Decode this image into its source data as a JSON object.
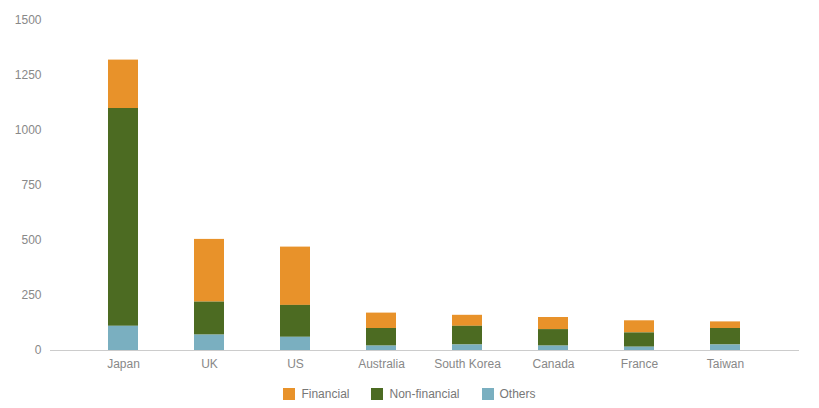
{
  "chart_data": {
    "type": "bar",
    "stacked": true,
    "categories": [
      "Japan",
      "UK",
      "US",
      "Australia",
      "South Korea",
      "Canada",
      "France",
      "Taiwan"
    ],
    "series": [
      {
        "name": "Financial",
        "color": "#E8922A",
        "values": [
          220,
          285,
          265,
          70,
          50,
          55,
          55,
          30
        ]
      },
      {
        "name": "Non-financial",
        "color": "#4C6B22",
        "values": [
          990,
          150,
          145,
          80,
          85,
          75,
          65,
          75
        ]
      },
      {
        "name": "Others",
        "color": "#7AAFC0",
        "values": [
          110,
          70,
          60,
          20,
          25,
          20,
          15,
          25
        ]
      }
    ],
    "ylim": [
      0,
      1500
    ],
    "yticks": [
      0,
      250,
      500,
      750,
      1000,
      1250,
      1500
    ],
    "grid": false,
    "legend": "bottom"
  }
}
